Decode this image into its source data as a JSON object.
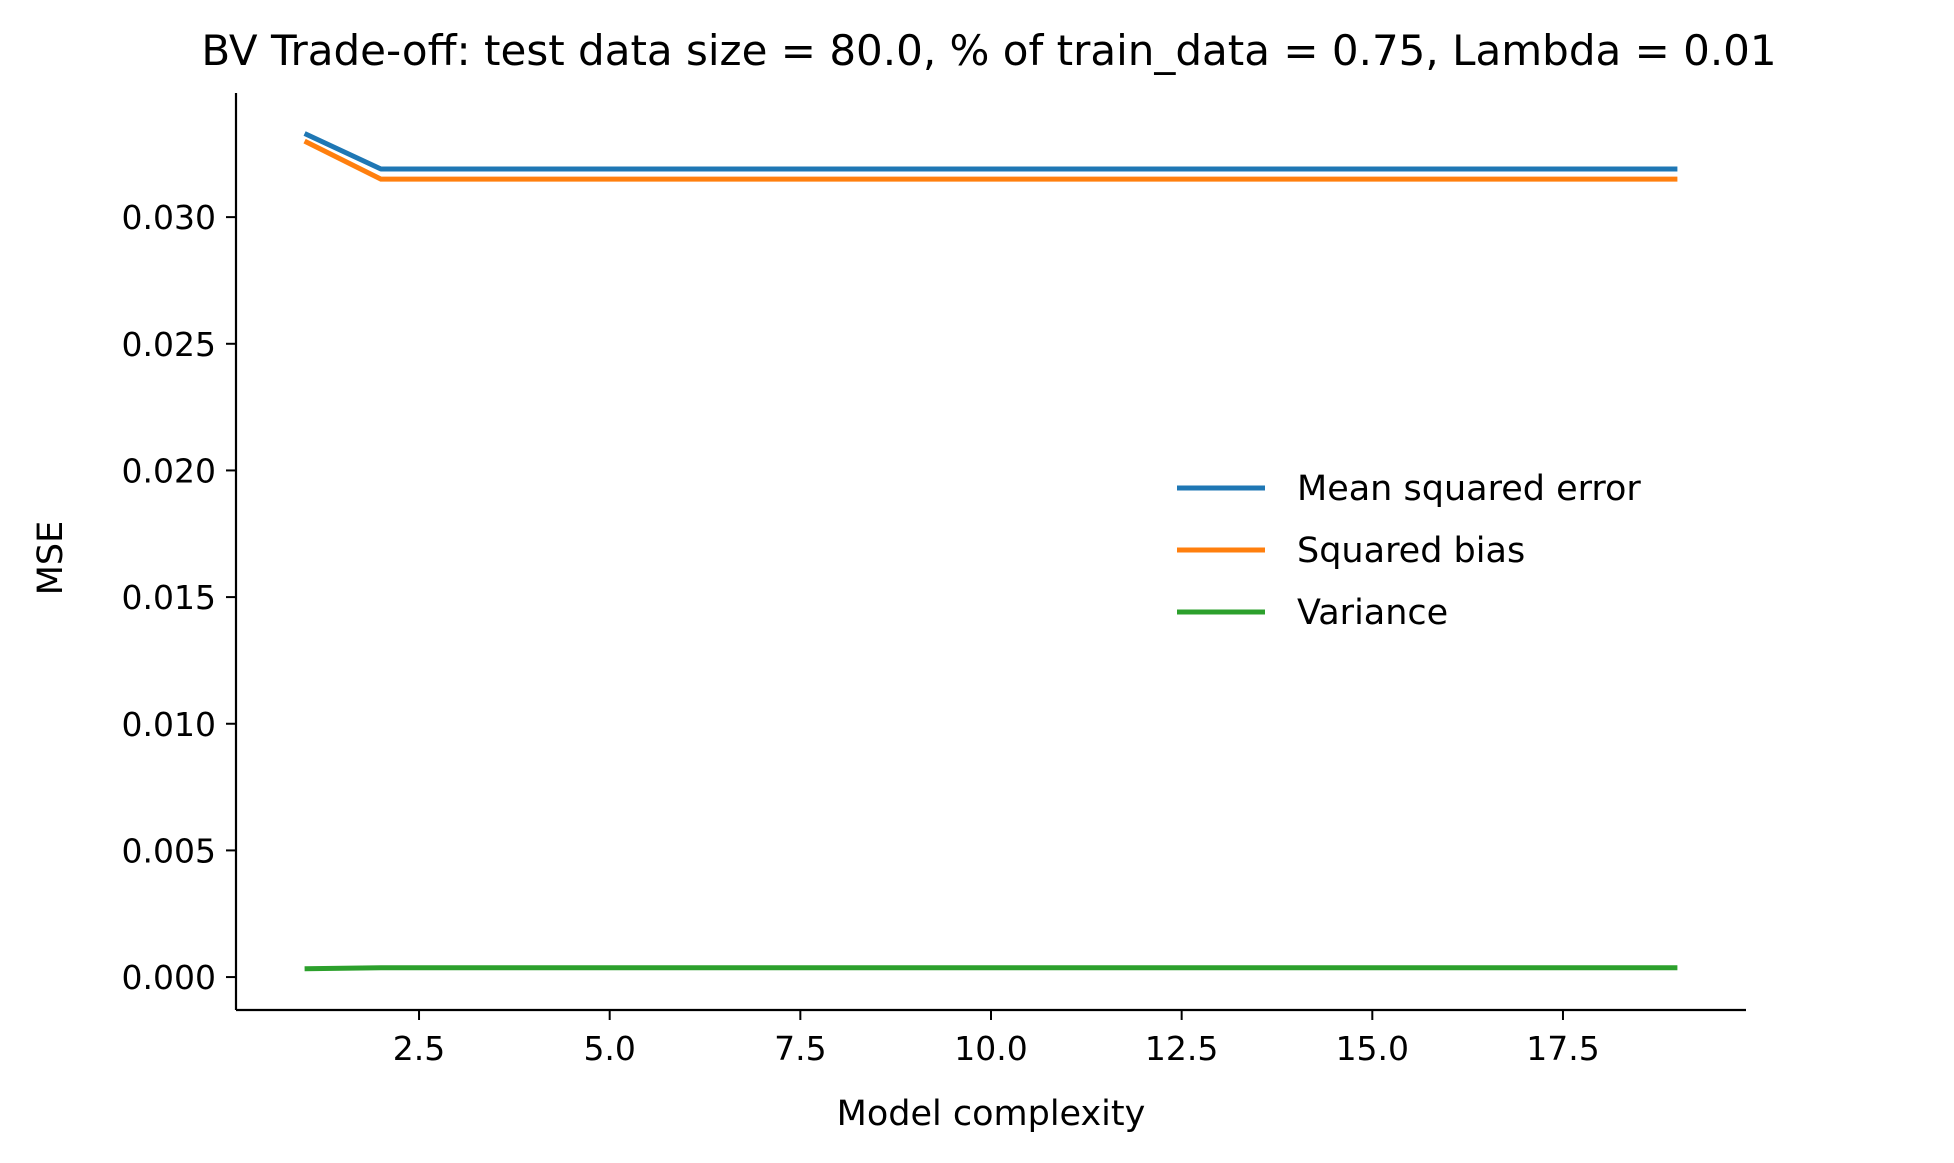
{
  "chart_data": {
    "type": "line",
    "title": "BV Trade-off: test data size = 80.0, % of train_data = 0.75, Lambda = 0.01",
    "xlabel": "Model complexity",
    "ylabel": "MSE",
    "xlim": [
      0.1,
      19.9
    ],
    "ylim": [
      -0.0013,
      0.0349
    ],
    "xticks": [
      2.5,
      5.0,
      7.5,
      10.0,
      12.5,
      15.0,
      17.5
    ],
    "xtick_labels": [
      "2.5",
      "5.0",
      "7.5",
      "10.0",
      "12.5",
      "15.0",
      "17.5"
    ],
    "yticks": [
      0.0,
      0.005,
      0.01,
      0.015,
      0.02,
      0.025,
      0.03
    ],
    "ytick_labels": [
      "0.000",
      "0.005",
      "0.010",
      "0.015",
      "0.020",
      "0.025",
      "0.030"
    ],
    "grid": false,
    "legend_position": "center-right",
    "x": [
      1,
      2,
      3,
      4,
      5,
      6,
      7,
      8,
      9,
      10,
      11,
      12,
      13,
      14,
      15,
      16,
      17,
      18,
      19
    ],
    "series": [
      {
        "name": "Mean squared error",
        "color": "#1f77b4",
        "values": [
          0.0333,
          0.0319,
          0.0319,
          0.0319,
          0.0319,
          0.0319,
          0.0319,
          0.0319,
          0.0319,
          0.0319,
          0.0319,
          0.0319,
          0.0319,
          0.0319,
          0.0319,
          0.0319,
          0.0319,
          0.0319,
          0.0319
        ]
      },
      {
        "name": "Squared bias",
        "color": "#ff7f0e",
        "values": [
          0.033,
          0.0315,
          0.0315,
          0.0315,
          0.0315,
          0.0315,
          0.0315,
          0.0315,
          0.0315,
          0.0315,
          0.0315,
          0.0315,
          0.0315,
          0.0315,
          0.0315,
          0.0315,
          0.0315,
          0.0315,
          0.0315
        ]
      },
      {
        "name": "Variance",
        "color": "#2ca02c",
        "values": [
          0.00033,
          0.00037,
          0.00037,
          0.00037,
          0.00037,
          0.00037,
          0.00037,
          0.00037,
          0.00037,
          0.00037,
          0.00037,
          0.00037,
          0.00037,
          0.00037,
          0.00037,
          0.00037,
          0.00037,
          0.00037,
          0.00037
        ]
      }
    ]
  }
}
